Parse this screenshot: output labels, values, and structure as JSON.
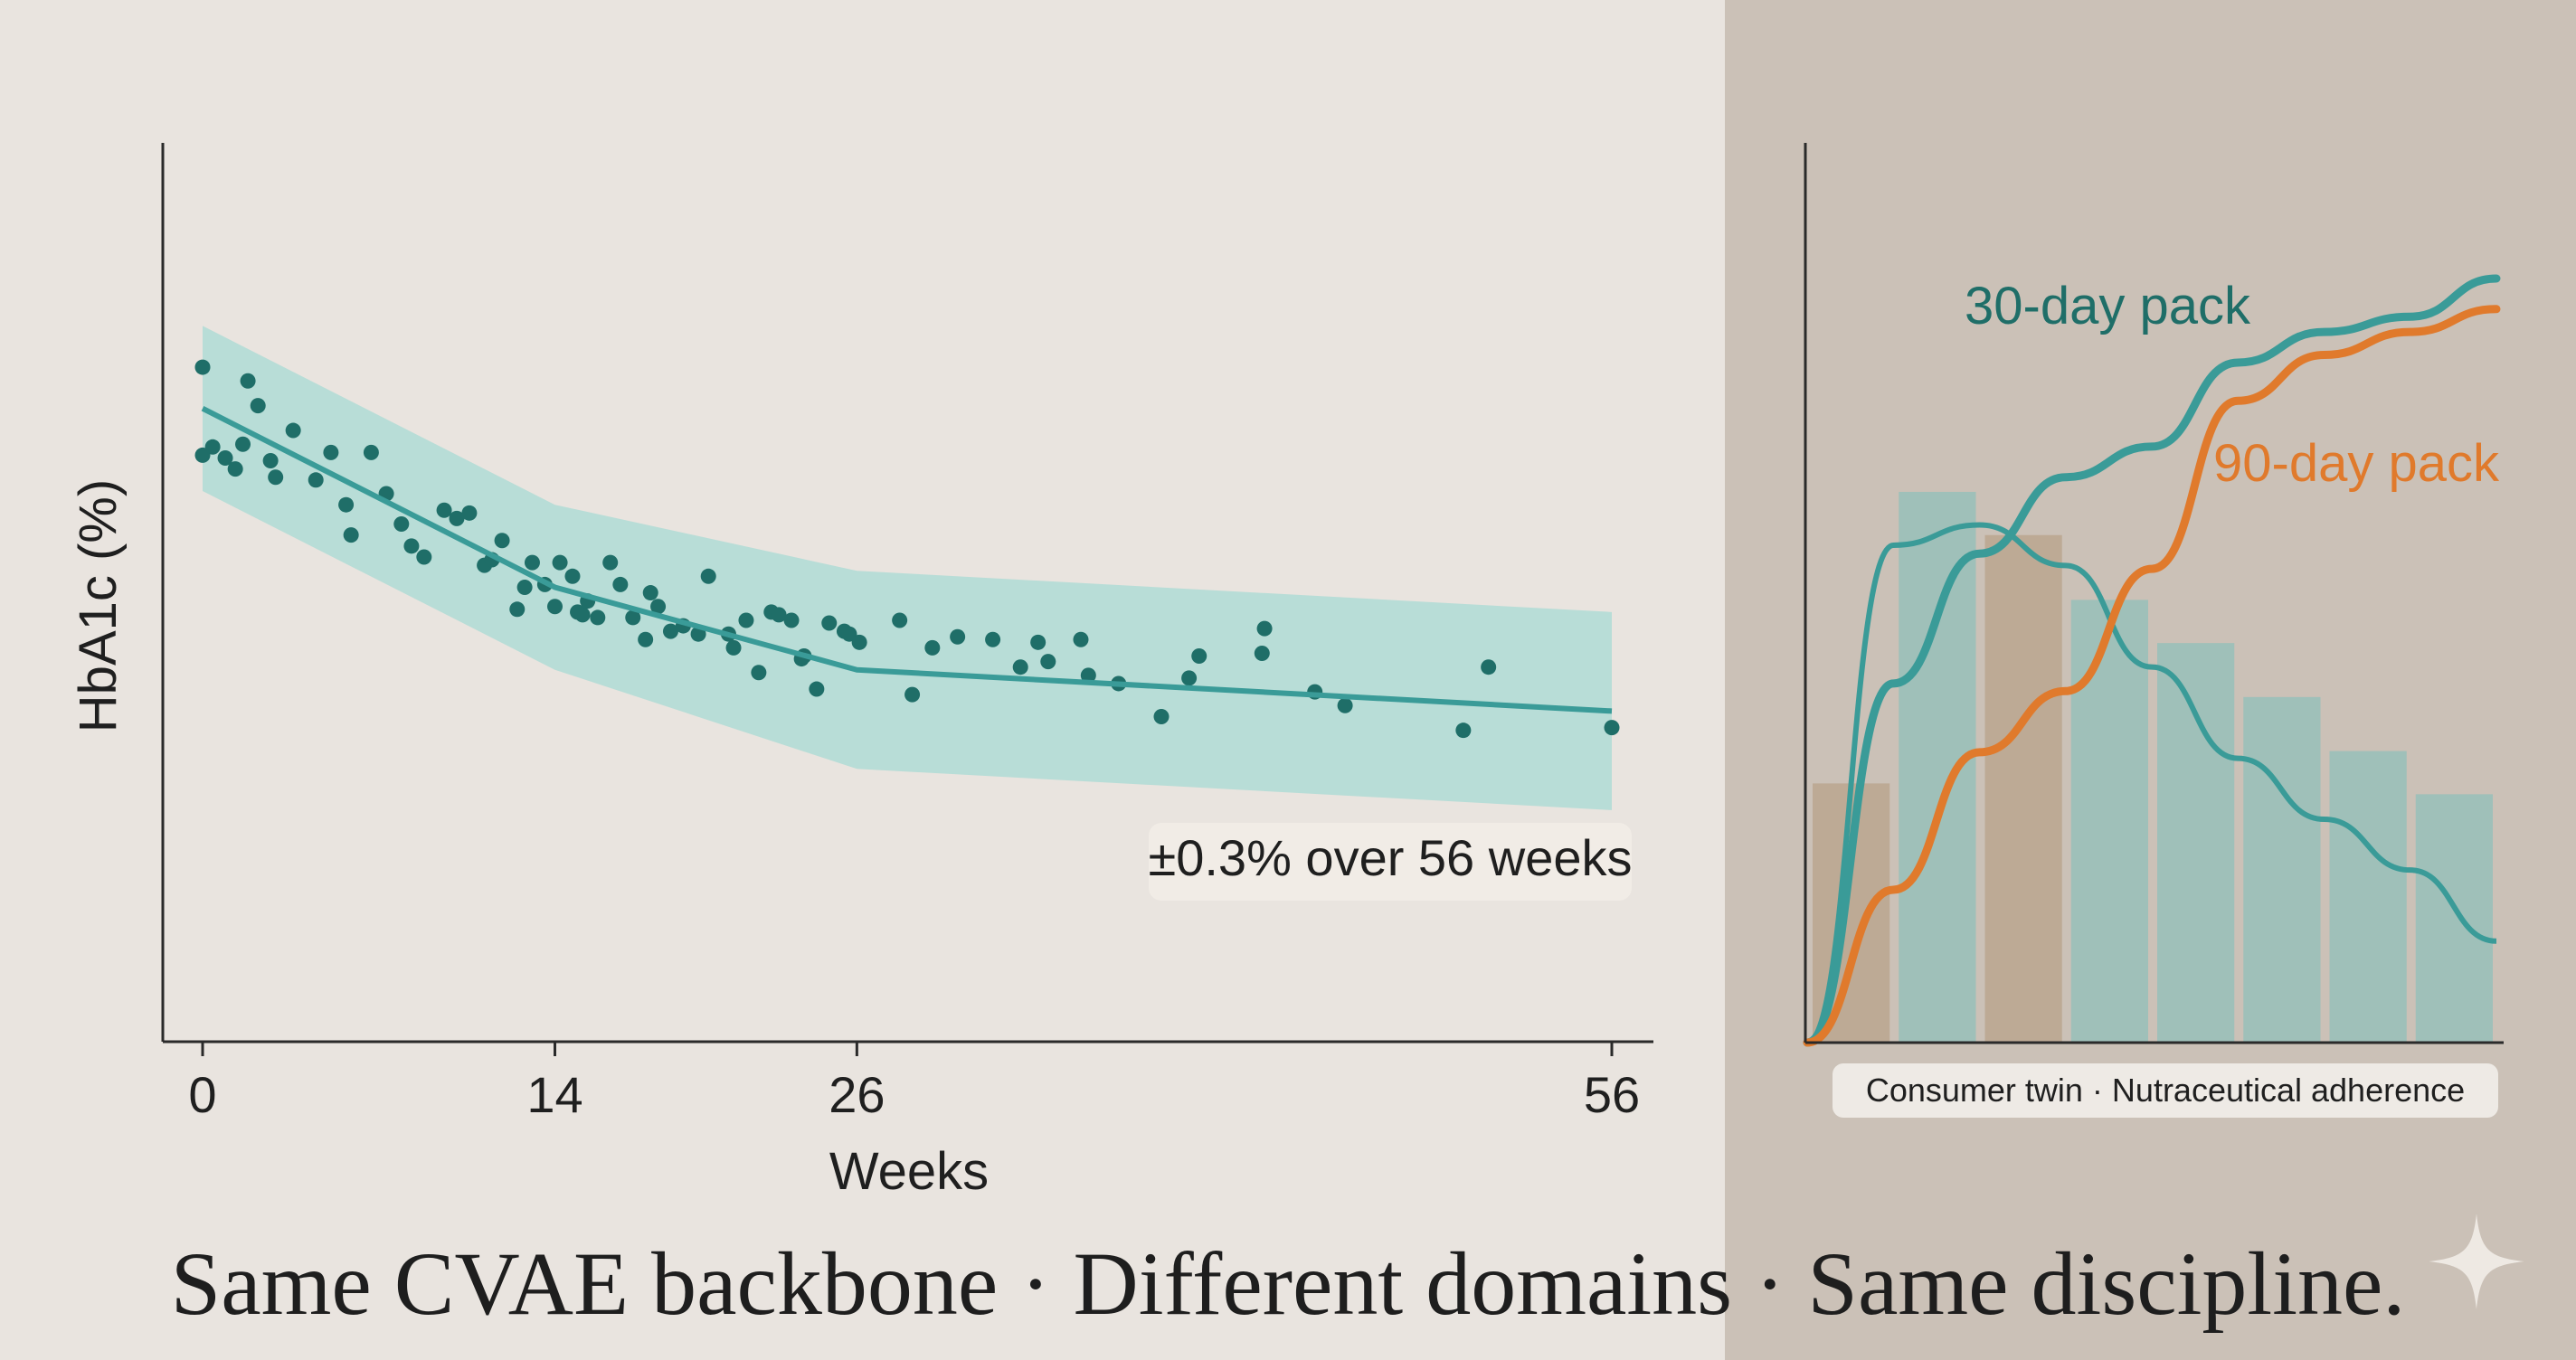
{
  "caption": "Same CVAE backbone · Different domains · Same discipline.",
  "colors": {
    "teal": "#3a9b98",
    "teal_dark": "#1f6e68",
    "band": "#b5dcd6",
    "orange": "#e07a2c",
    "bar_teal": "#98bfba",
    "bar_tan": "#bba68f"
  },
  "chart_data": [
    {
      "type": "scatter",
      "ylabel": "HbA1c (%)",
      "xlabel": "Weeks",
      "xticks": [
        0,
        14,
        26,
        56
      ],
      "xlim": [
        0,
        56
      ],
      "grid": false,
      "annotation": "±0.3% over 56 weeks",
      "trend": {
        "x": [
          0,
          14,
          26,
          56
        ],
        "y": [
          7.7,
          7.05,
          6.75,
          6.6
        ],
        "band_half_width": [
          0.3,
          0.3,
          0.36,
          0.36
        ]
      },
      "points": [
        [
          0,
          7.85
        ],
        [
          0,
          7.53
        ],
        [
          0.4,
          7.56
        ],
        [
          0.9,
          7.52
        ],
        [
          1.3,
          7.48
        ],
        [
          1.6,
          7.57
        ],
        [
          1.8,
          7.8
        ],
        [
          2.2,
          7.71
        ],
        [
          2.7,
          7.51
        ],
        [
          2.9,
          7.45
        ],
        [
          3.6,
          7.62
        ],
        [
          4.5,
          7.44
        ],
        [
          5.1,
          7.54
        ],
        [
          5.7,
          7.35
        ],
        [
          5.9,
          7.24
        ],
        [
          6.7,
          7.54
        ],
        [
          7.3,
          7.39
        ],
        [
          7.9,
          7.28
        ],
        [
          8.3,
          7.2
        ],
        [
          8.8,
          7.16
        ],
        [
          9.6,
          7.33
        ],
        [
          10.1,
          7.3
        ],
        [
          10.6,
          7.32
        ],
        [
          11.2,
          7.13
        ],
        [
          11.5,
          7.15
        ],
        [
          11.9,
          7.22
        ],
        [
          12.5,
          6.97
        ],
        [
          12.8,
          7.05
        ],
        [
          13.1,
          7.14
        ],
        [
          13.6,
          7.06
        ],
        [
          14,
          6.98
        ],
        [
          14.2,
          7.14
        ],
        [
          14.7,
          7.09
        ],
        [
          14.9,
          6.96
        ],
        [
          15.1,
          6.95
        ],
        [
          15.3,
          7.0
        ],
        [
          15.7,
          6.94
        ],
        [
          16.2,
          7.14
        ],
        [
          16.6,
          7.06
        ],
        [
          17.1,
          6.94
        ],
        [
          17.6,
          6.86
        ],
        [
          17.8,
          7.03
        ],
        [
          18.1,
          6.98
        ],
        [
          18.6,
          6.89
        ],
        [
          19.1,
          6.91
        ],
        [
          19.7,
          6.88
        ],
        [
          20.1,
          7.09
        ],
        [
          20.9,
          6.88
        ],
        [
          21.1,
          6.83
        ],
        [
          21.6,
          6.93
        ],
        [
          22.1,
          6.74
        ],
        [
          22.6,
          6.96
        ],
        [
          22.9,
          6.95
        ],
        [
          23.4,
          6.93
        ],
        [
          23.8,
          6.79
        ],
        [
          23.9,
          6.8
        ],
        [
          24.4,
          6.68
        ],
        [
          24.9,
          6.92
        ],
        [
          25.5,
          6.89
        ],
        [
          25.7,
          6.88
        ],
        [
          26.1,
          6.85
        ],
        [
          27.7,
          6.93
        ],
        [
          28.2,
          6.66
        ],
        [
          29,
          6.83
        ],
        [
          30,
          6.87
        ],
        [
          31.4,
          6.86
        ],
        [
          32.5,
          6.76
        ],
        [
          33.2,
          6.85
        ],
        [
          33.6,
          6.78
        ],
        [
          34.9,
          6.86
        ],
        [
          35.2,
          6.73
        ],
        [
          36.4,
          6.7
        ],
        [
          38.1,
          6.58
        ],
        [
          39.2,
          6.72
        ],
        [
          39.6,
          6.8
        ],
        [
          42.1,
          6.81
        ],
        [
          42.2,
          6.9
        ],
        [
          44.2,
          6.67
        ],
        [
          45.4,
          6.62
        ],
        [
          50.1,
          6.53
        ],
        [
          51.1,
          6.76
        ],
        [
          56,
          6.54
        ]
      ],
      "ylim": [
        5.75,
        8.1
      ]
    },
    {
      "type": "line",
      "title": "Consumer twin · Nutraceutical adherence",
      "series": [
        {
          "name": "30-day pack",
          "values": [
            0,
            0.47,
            0.64,
            0.74,
            0.78,
            0.89,
            0.93,
            0.95,
            1.0
          ]
        },
        {
          "name": "90-day pack",
          "values": [
            0,
            0.2,
            0.38,
            0.46,
            0.62,
            0.84,
            0.9,
            0.93,
            0.96
          ]
        }
      ],
      "bars": [
        0.24,
        0.51,
        0.47,
        0.41,
        0.37,
        0.32,
        0.27,
        0.23
      ],
      "bar_colors": [
        "tan",
        "teal",
        "tan",
        "teal",
        "teal",
        "teal",
        "teal",
        "teal"
      ],
      "density": [
        0,
        0.49,
        0.51,
        0.47,
        0.37,
        0.28,
        0.22,
        0.17,
        0.1
      ]
    }
  ]
}
